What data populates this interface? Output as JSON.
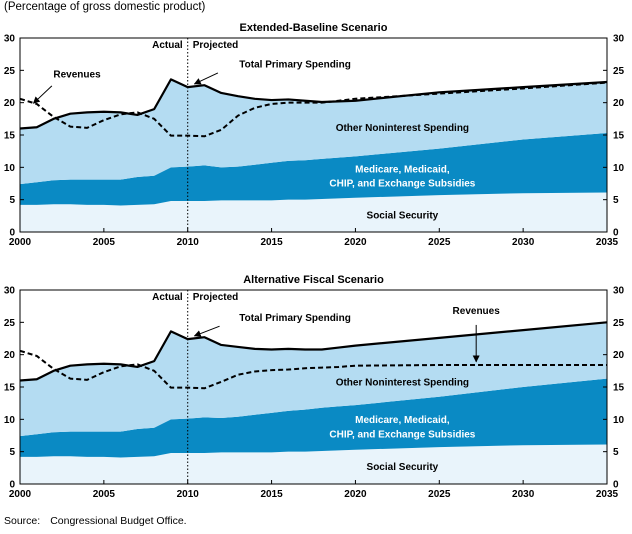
{
  "units_note": "(Percentage of gross domestic product)",
  "source": {
    "label": "Source:",
    "text": "Congressional Budget Office."
  },
  "colors": {
    "social_security": "#e9f4fb",
    "medicare": "#0a8ac4",
    "other_noninterest": "#b4dcf2",
    "spending_line": "#000000",
    "revenues_line": "#000000",
    "divider": "#000000"
  },
  "chart_data": [
    {
      "type": "area",
      "title": "Extended-Baseline Scenario",
      "xlim": [
        2000,
        2035
      ],
      "ylim": [
        0,
        30
      ],
      "x_ticks": [
        2000,
        2005,
        2010,
        2015,
        2020,
        2025,
        2030,
        2035
      ],
      "y_ticks": [
        0,
        5,
        10,
        15,
        20,
        25,
        30
      ],
      "grid": false,
      "divider_x": 2010,
      "divider_labels": {
        "left": "Actual",
        "right": "Projected"
      },
      "x": [
        2000,
        2001,
        2002,
        2003,
        2004,
        2005,
        2006,
        2007,
        2008,
        2009,
        2010,
        2011,
        2012,
        2013,
        2014,
        2015,
        2016,
        2017,
        2018,
        2019,
        2020,
        2025,
        2030,
        2035
      ],
      "series": [
        {
          "name": "Social Security",
          "kind": "stack",
          "values": [
            4.2,
            4.2,
            4.3,
            4.3,
            4.2,
            4.2,
            4.1,
            4.2,
            4.3,
            4.8,
            4.8,
            4.8,
            4.9,
            4.9,
            4.9,
            4.9,
            5.0,
            5.0,
            5.1,
            5.2,
            5.3,
            5.7,
            6.0,
            6.1
          ]
        },
        {
          "name": "Medicare, Medicaid, CHIP, and Exchange Subsidies",
          "kind": "stack",
          "values": [
            3.2,
            3.5,
            3.7,
            3.8,
            3.9,
            3.9,
            4.0,
            4.3,
            4.4,
            5.2,
            5.3,
            5.5,
            5.1,
            5.2,
            5.5,
            5.8,
            6.0,
            6.1,
            6.2,
            6.3,
            6.4,
            7.2,
            8.3,
            9.2
          ]
        },
        {
          "name": "Other Noninterest Spending",
          "kind": "stack",
          "values": [
            8.6,
            8.5,
            9.5,
            10.2,
            10.4,
            10.5,
            10.4,
            9.6,
            10.3,
            13.6,
            12.3,
            12.4,
            11.5,
            10.9,
            10.2,
            9.7,
            9.5,
            9.2,
            8.8,
            8.7,
            8.6,
            8.7,
            8.1,
            7.9
          ]
        },
        {
          "name": "Total Primary Spending",
          "kind": "line",
          "values": [
            16.0,
            16.2,
            17.5,
            18.3,
            18.5,
            18.6,
            18.5,
            18.1,
            19.0,
            23.6,
            22.4,
            22.7,
            21.5,
            21.0,
            20.6,
            20.4,
            20.5,
            20.3,
            20.1,
            20.2,
            20.3,
            21.6,
            22.4,
            23.2
          ]
        },
        {
          "name": "Revenues",
          "kind": "line",
          "dashed": true,
          "values": [
            20.6,
            19.8,
            17.8,
            16.3,
            16.1,
            17.3,
            18.2,
            18.5,
            17.5,
            14.9,
            14.9,
            14.8,
            15.8,
            18.0,
            19.2,
            19.8,
            20.0,
            20.0,
            20.0,
            20.3,
            20.6,
            21.4,
            22.2,
            23.1
          ]
        }
      ],
      "annotations": [
        {
          "text": "Revenues",
          "series": "Revenues"
        },
        {
          "text": "Total Primary Spending",
          "series": "Total Primary Spending"
        },
        {
          "text": "Other Noninterest Spending",
          "series": "Other Noninterest Spending"
        },
        {
          "text": "Medicare, Medicaid,",
          "series": "Medicare, Medicaid, CHIP, and Exchange Subsidies"
        },
        {
          "text": "CHIP, and Exchange Subsidies",
          "series": "Medicare, Medicaid, CHIP, and Exchange Subsidies"
        },
        {
          "text": "Social Security",
          "series": "Social Security"
        }
      ]
    },
    {
      "type": "area",
      "title": "Alternative Fiscal Scenario",
      "xlim": [
        2000,
        2035
      ],
      "ylim": [
        0,
        30
      ],
      "x_ticks": [
        2000,
        2005,
        2010,
        2015,
        2020,
        2025,
        2030,
        2035
      ],
      "y_ticks": [
        0,
        5,
        10,
        15,
        20,
        25,
        30
      ],
      "grid": false,
      "divider_x": 2010,
      "divider_labels": {
        "left": "Actual",
        "right": "Projected"
      },
      "x": [
        2000,
        2001,
        2002,
        2003,
        2004,
        2005,
        2006,
        2007,
        2008,
        2009,
        2010,
        2011,
        2012,
        2013,
        2014,
        2015,
        2016,
        2017,
        2018,
        2019,
        2020,
        2025,
        2030,
        2035
      ],
      "series": [
        {
          "name": "Social Security",
          "kind": "stack",
          "values": [
            4.2,
            4.2,
            4.3,
            4.3,
            4.2,
            4.2,
            4.1,
            4.2,
            4.3,
            4.8,
            4.8,
            4.8,
            4.9,
            4.9,
            4.9,
            4.9,
            5.0,
            5.0,
            5.1,
            5.2,
            5.3,
            5.7,
            6.0,
            6.1
          ]
        },
        {
          "name": "Medicare, Medicaid, CHIP, and Exchange Subsidies",
          "kind": "stack",
          "values": [
            3.2,
            3.5,
            3.7,
            3.8,
            3.9,
            3.9,
            4.0,
            4.3,
            4.4,
            5.2,
            5.3,
            5.5,
            5.3,
            5.5,
            5.8,
            6.1,
            6.3,
            6.5,
            6.7,
            6.8,
            6.9,
            7.8,
            9.0,
            10.2
          ]
        },
        {
          "name": "Other Noninterest Spending",
          "kind": "stack",
          "values": [
            8.6,
            8.5,
            9.5,
            10.2,
            10.4,
            10.5,
            10.4,
            9.6,
            10.3,
            13.6,
            12.3,
            12.4,
            11.3,
            10.8,
            10.2,
            9.8,
            9.6,
            9.3,
            9.0,
            9.1,
            9.2,
            9.1,
            8.8,
            8.7
          ]
        },
        {
          "name": "Total Primary Spending",
          "kind": "line",
          "values": [
            16.0,
            16.2,
            17.5,
            18.3,
            18.5,
            18.6,
            18.5,
            18.1,
            19.0,
            23.6,
            22.4,
            22.7,
            21.5,
            21.2,
            20.9,
            20.8,
            20.9,
            20.8,
            20.8,
            21.1,
            21.4,
            22.6,
            23.8,
            25.0
          ]
        },
        {
          "name": "Revenues",
          "kind": "line",
          "dashed": true,
          "values": [
            20.6,
            19.8,
            17.8,
            16.3,
            16.1,
            17.3,
            18.2,
            18.5,
            17.5,
            14.9,
            14.9,
            14.8,
            15.8,
            16.9,
            17.4,
            17.6,
            17.7,
            17.9,
            18.0,
            18.1,
            18.3,
            18.4,
            18.4,
            18.4
          ]
        }
      ],
      "annotations": [
        {
          "text": "Revenues",
          "series": "Revenues"
        },
        {
          "text": "Total Primary Spending",
          "series": "Total Primary Spending"
        },
        {
          "text": "Other Noninterest Spending",
          "series": "Other Noninterest Spending"
        },
        {
          "text": "Medicare, Medicaid,",
          "series": "Medicare, Medicaid, CHIP, and Exchange Subsidies"
        },
        {
          "text": "CHIP, and Exchange Subsidies",
          "series": "Medicare, Medicaid, CHIP, and Exchange Subsidies"
        },
        {
          "text": "Social Security",
          "series": "Social Security"
        }
      ]
    }
  ]
}
